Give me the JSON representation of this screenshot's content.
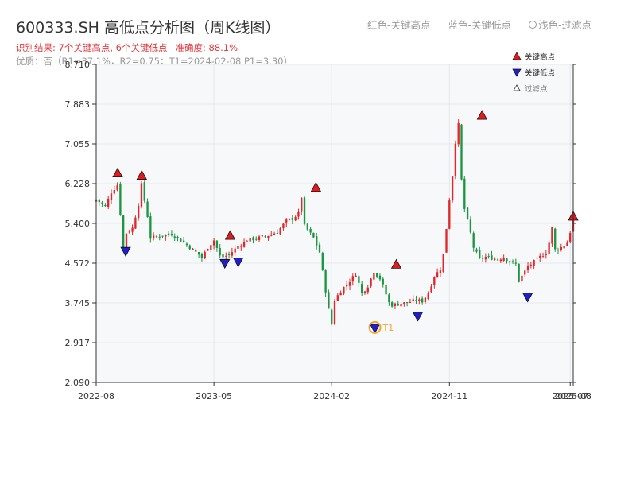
{
  "header": {
    "title": "600333.SH 高低点分析图（周K线图）",
    "result_text": "识别结果: 7个关键高点, 6个关键低点",
    "accuracy_text": "准确度: 88.1%",
    "quality_text": "优质：否（R1=37.1%，R2=0.75；T1=2024-02-08 P1=3.30）"
  },
  "top_legend": {
    "red": "红色-关键高点",
    "blue": "蓝色-关键低点",
    "light": "浅色-过滤点"
  },
  "legend": {
    "high": "关键高点",
    "low": "关键低点",
    "filtered": "过滤点"
  },
  "colors": {
    "up": "#e0272b",
    "down": "#1a9641",
    "high_marker": "#e31a1c",
    "low_marker": "#1f1fcc",
    "t1_ring": "#f4a428",
    "grid": "#e4e7ee",
    "plot_bg": "#f7f8fa"
  },
  "chart_data": {
    "type": "candlestick",
    "xlabel": "",
    "ylabel": "",
    "ylim": [
      2.09,
      8.71
    ],
    "yticks": [
      "2.090",
      "2.917",
      "3.745",
      "4.572",
      "5.400",
      "6.228",
      "7.055",
      "7.883",
      "8.710"
    ],
    "xticks": [
      {
        "label": "2022-08",
        "week": 0
      },
      {
        "label": "2023-05",
        "week": 39
      },
      {
        "label": "2024-02",
        "week": 78
      },
      {
        "label": "2024-11",
        "week": 117
      },
      {
        "label": "2025-07",
        "week": 157
      },
      {
        "label": "2025-08",
        "week": 158
      }
    ],
    "weeks": 159,
    "close_path": [
      [
        0,
        5.9
      ],
      [
        3,
        5.75
      ],
      [
        5,
        6.05
      ],
      [
        7,
        6.2
      ],
      [
        8,
        5.6
      ],
      [
        9,
        4.9
      ],
      [
        10,
        5.2
      ],
      [
        12,
        5.3
      ],
      [
        14,
        5.8
      ],
      [
        15,
        6.2
      ],
      [
        17,
        5.55
      ],
      [
        18,
        5.1
      ],
      [
        22,
        5.15
      ],
      [
        25,
        5.18
      ],
      [
        28,
        5.05
      ],
      [
        31,
        4.9
      ],
      [
        34,
        4.75
      ],
      [
        35,
        4.68
      ],
      [
        37,
        4.9
      ],
      [
        39,
        5.05
      ],
      [
        41,
        4.72
      ],
      [
        42,
        4.7
      ],
      [
        44,
        4.75
      ],
      [
        47,
        4.92
      ],
      [
        50,
        5.05
      ],
      [
        54,
        5.1
      ],
      [
        57,
        5.15
      ],
      [
        60,
        5.22
      ],
      [
        63,
        5.45
      ],
      [
        65,
        5.5
      ],
      [
        67,
        5.6
      ],
      [
        68,
        5.95
      ],
      [
        69,
        5.35
      ],
      [
        72,
        5.1
      ],
      [
        74,
        4.8
      ],
      [
        75,
        4.4
      ],
      [
        76,
        4.0
      ],
      [
        77,
        3.6
      ],
      [
        78,
        3.3
      ],
      [
        79,
        3.8
      ],
      [
        81,
        4.0
      ],
      [
        84,
        4.2
      ],
      [
        86,
        4.35
      ],
      [
        88,
        3.95
      ],
      [
        90,
        4.1
      ],
      [
        92,
        4.4
      ],
      [
        94,
        4.25
      ],
      [
        95,
        4.1
      ],
      [
        97,
        3.75
      ],
      [
        98,
        3.7
      ],
      [
        100,
        3.72
      ],
      [
        103,
        3.75
      ],
      [
        106,
        3.8
      ],
      [
        108,
        3.78
      ],
      [
        110,
        3.95
      ],
      [
        112,
        4.3
      ],
      [
        114,
        4.45
      ],
      [
        115,
        4.75
      ],
      [
        116,
        5.3
      ],
      [
        117,
        5.9
      ],
      [
        118,
        6.4
      ],
      [
        119,
        7.1
      ],
      [
        120,
        7.45
      ],
      [
        121,
        6.3
      ],
      [
        122,
        5.7
      ],
      [
        124,
        5.2
      ],
      [
        125,
        4.9
      ],
      [
        127,
        4.65
      ],
      [
        129,
        4.7
      ],
      [
        131,
        4.68
      ],
      [
        133,
        4.65
      ],
      [
        135,
        4.7
      ],
      [
        137,
        4.6
      ],
      [
        139,
        4.55
      ],
      [
        140,
        4.2
      ],
      [
        141,
        4.3
      ],
      [
        143,
        4.5
      ],
      [
        145,
        4.6
      ],
      [
        147,
        4.7
      ],
      [
        149,
        4.8
      ],
      [
        150,
        5.0
      ],
      [
        151,
        5.3
      ],
      [
        152,
        4.85
      ],
      [
        154,
        4.9
      ],
      [
        156,
        5.0
      ],
      [
        158,
        5.45
      ]
    ],
    "key_highs": [
      {
        "week": 8,
        "price": 6.35
      },
      {
        "week": 17,
        "price": 6.3
      },
      {
        "week": 50,
        "price": 5.05
      },
      {
        "week": 82,
        "price": 6.05
      },
      {
        "week": 112,
        "price": 4.45
      },
      {
        "week": 144,
        "price": 7.55
      },
      {
        "week": 178,
        "price": 5.45
      }
    ],
    "key_lows": [
      {
        "week": 11,
        "price": 4.9
      },
      {
        "week": 48,
        "price": 4.65
      },
      {
        "week": 53,
        "price": 4.68
      },
      {
        "week": 104,
        "price": 3.3
      },
      {
        "week": 120,
        "price": 3.55
      },
      {
        "week": 161,
        "price": 3.95
      }
    ],
    "t1": {
      "label": "T1",
      "week": 104,
      "price": 3.3
    }
  }
}
